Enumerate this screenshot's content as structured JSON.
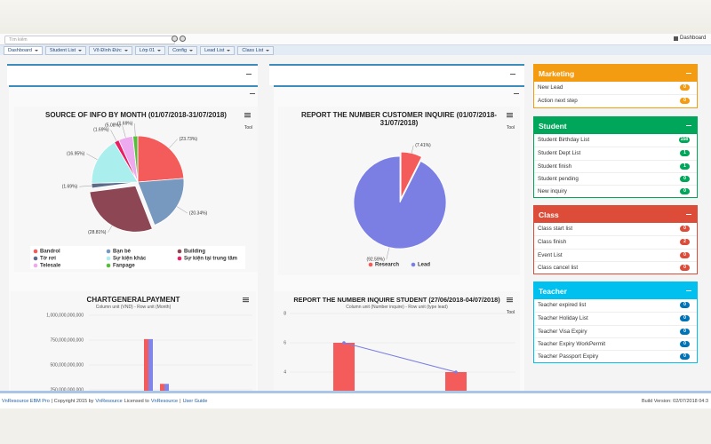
{
  "header": {
    "search_placeholder": "Tìm kiếm",
    "breadcrumb": "Dashboard"
  },
  "tabs": [
    "Dashboard",
    "Student List",
    "Võ Đình Đức",
    "Lớp 01",
    "Config",
    "Lead List",
    "Class List"
  ],
  "chart_data": [
    {
      "type": "pie",
      "title": "SOURCE OF INFO BY MONTH (01/07/2018-31/07/2018)",
      "menu_label": "Tool",
      "categories": [
        "Bandrol",
        "Bạn bè",
        "Building",
        "Tờ rơi",
        "Sự kiện khác",
        "Sự kiện tại trung tâm",
        "Telesale",
        "Fanpage"
      ],
      "values": [
        23.73,
        20.34,
        28.81,
        1.69,
        16.95,
        1.69,
        5.08,
        1.69
      ],
      "value_labels": [
        "(23.73%)",
        "(20.34%)",
        "(28.81%)",
        "(1.69%)",
        "(16.95%)",
        "(1.69%)",
        "(5.08%)",
        "(1.69%)"
      ],
      "colors": [
        "#f45b5b",
        "#7798bf",
        "#8d4653",
        "#5c6b8a",
        "#aaeeee",
        "#e91e63",
        "#eeaaee",
        "#55bf3b"
      ]
    },
    {
      "type": "pie",
      "title": "REPORT THE NUMBER CUSTOMER INQUIRE (01/07/2018-31/07/2018)",
      "menu_label": "Tool",
      "categories": [
        "Research",
        "Lead"
      ],
      "values": [
        7.41,
        92.59
      ],
      "value_labels": [
        "(7.41%)",
        "(92.59%)"
      ],
      "colors": [
        "#f45b5b",
        "#7b7fe3"
      ]
    },
    {
      "type": "bar",
      "title": "CHARTGENERALPAYMENT",
      "subtitle": "Column unit (VND) - Row unit (Month)",
      "categories": [
        null,
        null
      ],
      "series": [
        {
          "color": "#f45b5b",
          "values": [
            760000000000,
            310000000000
          ]
        },
        {
          "color": "#8085e9",
          "values": [
            760000000000,
            310000000000
          ]
        }
      ],
      "ylim": [
        0,
        1000000000000
      ],
      "yticks": [
        {
          "value": 250000000000,
          "label": "250,000,000,000"
        },
        {
          "value": 500000000000,
          "label": "500,000,000,000"
        },
        {
          "value": 750000000000,
          "label": "750,000,000,000"
        },
        {
          "value": 1000000000000,
          "label": "1,000,000,000,000"
        }
      ],
      "grid": true
    },
    {
      "type": "combo",
      "title": "REPORT THE NUMBER INQUIRE STUDENT (27/06/2018-04/07/2018)",
      "subtitle": "Column unit (Number inquire) - Row unit (type lead)",
      "menu_label": "Tool",
      "categories": [
        null,
        null
      ],
      "series": [
        {
          "type": "bar",
          "color": "#f45b5b",
          "values": [
            6,
            4
          ]
        },
        {
          "type": "line",
          "color": "#7b7fe3",
          "values": [
            6,
            4
          ]
        }
      ],
      "ylim": [
        0,
        8
      ],
      "yticks": [
        4,
        6,
        8
      ],
      "grid": true
    }
  ],
  "widgets": [
    {
      "title": "Marketing",
      "color": "#f39c12",
      "badge_color": "#f39c12",
      "items": [
        {
          "label": "New Lead",
          "count": 0
        },
        {
          "label": "Action next step",
          "count": 0
        }
      ]
    },
    {
      "title": "Student",
      "color": "#00a65a",
      "badge_color": "#00a65a",
      "items": [
        {
          "label": "Student Birthday List",
          "count": 158
        },
        {
          "label": "Student Dept List",
          "count": 1
        },
        {
          "label": "Student finish",
          "count": 1
        },
        {
          "label": "Student pending",
          "count": 0
        },
        {
          "label": "New inquiry",
          "count": 0
        }
      ]
    },
    {
      "title": "Class",
      "color": "#dd4b39",
      "badge_color": "#dd4b39",
      "items": [
        {
          "label": "Class start list",
          "count": 0
        },
        {
          "label": "Class finish",
          "count": 2
        },
        {
          "label": "Event List",
          "count": 0
        },
        {
          "label": "Class cancel list",
          "count": 0
        }
      ]
    },
    {
      "title": "Teacher",
      "color": "#00c0ef",
      "badge_color": "#0073b7",
      "items": [
        {
          "label": "Teacher expired list",
          "count": 0
        },
        {
          "label": "Teacher Holiday List",
          "count": 0
        },
        {
          "label": "Teacher Visa Expiry",
          "count": 0
        },
        {
          "label": "Teacher Expiry WorkPermit",
          "count": 0
        },
        {
          "label": "Teacher Passport Expiry",
          "count": 0
        }
      ]
    }
  ],
  "footer": {
    "parts": [
      {
        "text": "VnResource EBM Pro",
        "link": true
      },
      {
        "text": "| Copyright 2015 by",
        "link": false
      },
      {
        "text": "VnResource",
        "link": true
      },
      {
        "text": "Licensed to",
        "link": false
      },
      {
        "text": "VnResource",
        "link": true
      },
      {
        "text": "|",
        "link": false
      },
      {
        "text": "User Guide",
        "link": true
      }
    ],
    "build": "Build Version: 02/07/2018 04:3"
  }
}
